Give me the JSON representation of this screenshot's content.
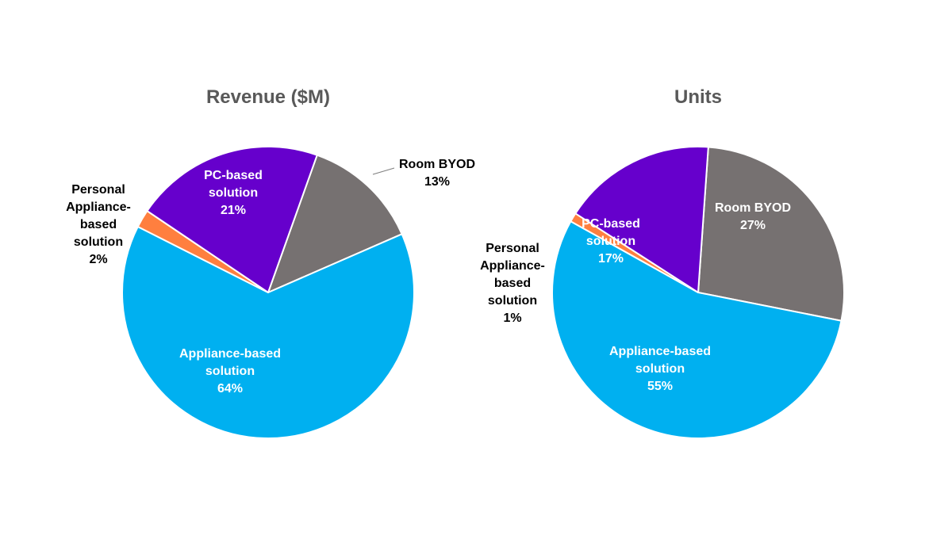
{
  "chart_data": [
    {
      "type": "pie",
      "title": "Revenue ($M)",
      "slices": [
        {
          "label": "Room BYOD",
          "value": 13,
          "display": [
            "Room BYOD",
            "13%"
          ],
          "color": "#767171",
          "label_inside": false
        },
        {
          "label": "Appliance-based solution",
          "value": 64,
          "display": [
            "Appliance-based",
            "solution",
            "64%"
          ],
          "color": "#00B0F0",
          "label_inside": true
        },
        {
          "label": "Personal Appliance-based solution",
          "value": 2,
          "display": [
            "Personal",
            "Appliance-",
            "based",
            "solution",
            "2%"
          ],
          "color": "#FF7F3F",
          "label_inside": false
        },
        {
          "label": "PC-based solution",
          "value": 21,
          "display": [
            "PC-based",
            "solution",
            "21%"
          ],
          "color": "#6600CC",
          "label_inside": true
        }
      ]
    },
    {
      "type": "pie",
      "title": "Units",
      "slices": [
        {
          "label": "Room BYOD",
          "value": 27,
          "display": [
            "Room BYOD",
            "27%"
          ],
          "color": "#767171",
          "label_inside": true
        },
        {
          "label": "Appliance-based solution",
          "value": 55,
          "display": [
            "Appliance-based",
            "solution",
            "55%"
          ],
          "color": "#00B0F0",
          "label_inside": true
        },
        {
          "label": "Personal Appliance-based solution",
          "value": 1,
          "display": [
            "Personal",
            "Appliance-",
            "based",
            "solution",
            "1%"
          ],
          "color": "#FF7F3F",
          "label_inside": false
        },
        {
          "label": "PC-based solution",
          "value": 17,
          "display": [
            "PC-based",
            "solution",
            "17%"
          ],
          "color": "#6600CC",
          "label_inside": true
        }
      ]
    }
  ]
}
